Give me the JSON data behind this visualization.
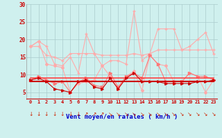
{
  "x": [
    0,
    1,
    2,
    3,
    4,
    5,
    6,
    7,
    8,
    9,
    10,
    11,
    12,
    13,
    14,
    15,
    16,
    17,
    18,
    19,
    20,
    21,
    22,
    23
  ],
  "series": [
    {
      "name": "rafales_light1",
      "color": "#ffaaaa",
      "linewidth": 0.8,
      "marker": "+",
      "markersize": 3,
      "y": [
        18,
        19.5,
        18,
        13,
        12.5,
        15,
        10.5,
        21.5,
        16,
        12.5,
        14,
        14,
        13,
        28,
        14,
        16,
        23,
        23,
        23,
        17,
        18,
        20,
        22,
        16
      ]
    },
    {
      "name": "rafales_light2",
      "color": "#ffaaaa",
      "linewidth": 0.8,
      "marker": "+",
      "markersize": 3,
      "y": [
        18,
        18,
        15.5,
        15,
        14,
        16,
        16,
        16,
        16,
        15.5,
        15.5,
        15.5,
        15.5,
        16,
        15.5,
        16,
        17,
        17,
        17,
        17,
        17,
        17,
        17,
        17
      ]
    },
    {
      "name": "moy_light1",
      "color": "#ffaaaa",
      "linewidth": 0.8,
      "marker": "D",
      "markersize": 2,
      "y": [
        18,
        19.5,
        13,
        12.5,
        12,
        5,
        7.5,
        8,
        8.5,
        12.5,
        9.5,
        6,
        9.5,
        11,
        5.5,
        15.5,
        13,
        12.5,
        8,
        8,
        10.5,
        9.5,
        5,
        8.5
      ]
    },
    {
      "name": "rafales_med",
      "color": "#ff7777",
      "linewidth": 0.8,
      "marker": ">",
      "markersize": 3,
      "y": [
        8.5,
        9.5,
        8.5,
        7.5,
        8,
        5,
        8,
        9,
        7,
        6.5,
        10.5,
        6.5,
        9.5,
        10.5,
        9,
        15.5,
        13,
        8,
        8,
        8,
        10.5,
        9.5,
        9.5,
        8.5
      ]
    },
    {
      "name": "moy_flat_bright",
      "color": "#ff4444",
      "linewidth": 1.2,
      "marker": null,
      "y": [
        9,
        9,
        9,
        9,
        9,
        9,
        9,
        9,
        9,
        9,
        9,
        9,
        9,
        9,
        9,
        9,
        9,
        9,
        9,
        9,
        9,
        9,
        9,
        9
      ]
    },
    {
      "name": "moy_flat_dark",
      "color": "#cc0000",
      "linewidth": 1.5,
      "marker": null,
      "y": [
        8,
        8,
        8,
        8,
        8,
        8,
        8,
        8,
        8,
        8,
        8,
        8,
        8,
        8,
        8,
        8,
        8,
        8,
        8,
        8,
        8,
        8,
        8,
        8
      ]
    },
    {
      "name": "moy_dark",
      "color": "#cc0000",
      "linewidth": 0.8,
      "marker": ">",
      "markersize": 2.5,
      "y": [
        8.5,
        9,
        8,
        6,
        5.5,
        5,
        8,
        8.5,
        6.5,
        6,
        9,
        6,
        9,
        10.5,
        8,
        8,
        8,
        7.5,
        7.5,
        7.5,
        7.5,
        8,
        8,
        8.5
      ]
    }
  ],
  "arrow_symbols": [
    "↓",
    "↓",
    "↓",
    "↓",
    "↓",
    "↓",
    "↓",
    "↗",
    "↗",
    "↗",
    "↘",
    "↘",
    "↘",
    "↘",
    "↘",
    "↘",
    "↘",
    "↘",
    "↘",
    "↘",
    "↘",
    "↘",
    "↘",
    "↘"
  ],
  "xlabel": "Vent moyen/en rafales ( km/h )",
  "xlim": [
    -0.5,
    23.5
  ],
  "ylim": [
    3,
    30
  ],
  "yticks": [
    5,
    10,
    15,
    20,
    25,
    30
  ],
  "xticks": [
    0,
    1,
    2,
    3,
    4,
    5,
    6,
    7,
    8,
    9,
    10,
    11,
    12,
    13,
    14,
    15,
    16,
    17,
    18,
    19,
    20,
    21,
    22,
    23
  ],
  "bg_color": "#cff0ee",
  "grid_color": "#aacccc",
  "label_color": "#cc0000",
  "xlabel_color": "#0000cc",
  "arrow_color": "#cc2200",
  "bottom_line_color": "#cc0000"
}
